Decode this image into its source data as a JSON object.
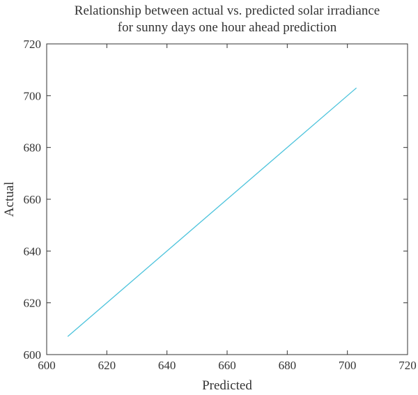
{
  "chart_data": {
    "type": "line",
    "title": "Relationship between actual vs. predicted solar irradiance",
    "subtitle": "for sunny days one hour ahead prediction",
    "xlabel": "Predicted",
    "ylabel": "Actual",
    "xlim": [
      600,
      720
    ],
    "ylim": [
      600,
      720
    ],
    "xticks": [
      600,
      620,
      640,
      660,
      680,
      700,
      720
    ],
    "yticks": [
      600,
      620,
      640,
      660,
      680,
      700,
      720
    ],
    "grid": false,
    "series": [
      {
        "color": "#4cc3dc",
        "x": [
          607,
          703
        ],
        "y": [
          607,
          703
        ]
      }
    ]
  }
}
